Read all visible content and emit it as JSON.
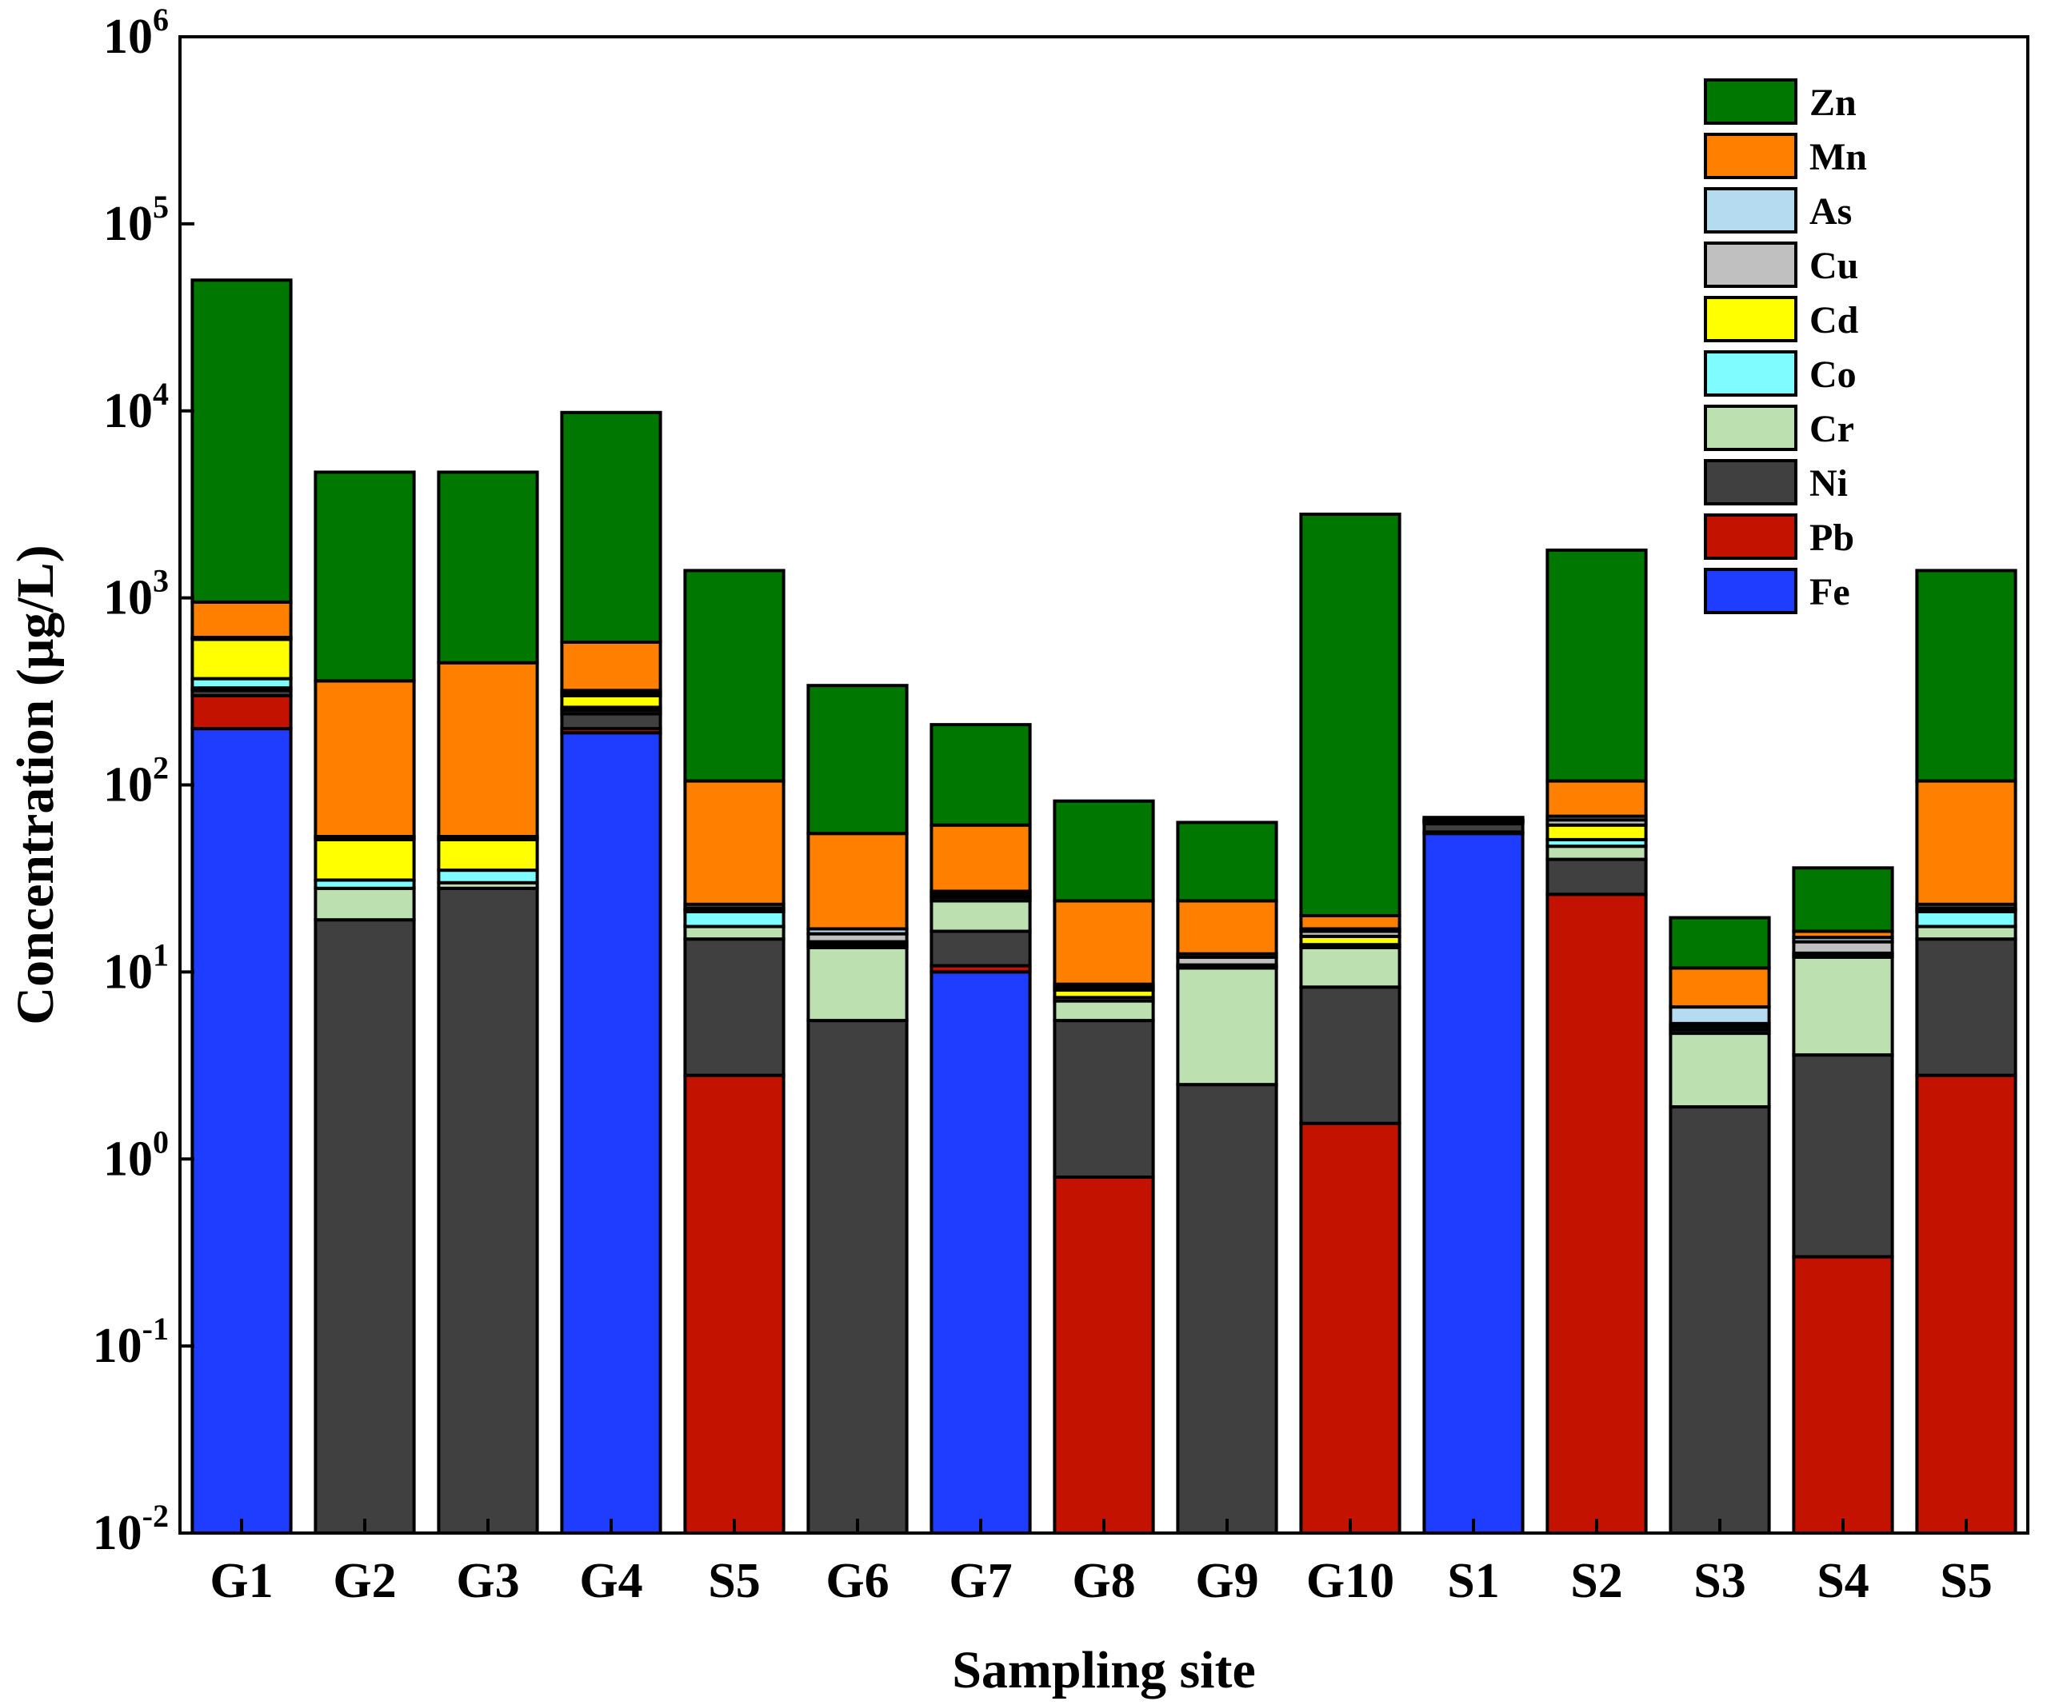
{
  "chart_data": {
    "type": "bar",
    "stacked": true,
    "yscale": "log",
    "title": "",
    "xlabel": "Sampling site",
    "ylabel": "Concentration (μg/L)",
    "ylim": [
      0.01,
      1000000
    ],
    "yticks": [
      {
        "base": "10",
        "exp": "-2"
      },
      {
        "base": "10",
        "exp": "-1"
      },
      {
        "base": "10",
        "exp": "0"
      },
      {
        "base": "10",
        "exp": "1"
      },
      {
        "base": "10",
        "exp": "2"
      },
      {
        "base": "10",
        "exp": "3"
      },
      {
        "base": "10",
        "exp": "4"
      },
      {
        "base": "10",
        "exp": "5"
      },
      {
        "base": "10",
        "exp": "6"
      }
    ],
    "legend_position": "top-right",
    "categories": [
      "G1",
      "G2",
      "G3",
      "G4",
      "S5",
      "G6",
      "G7",
      "G8",
      "G9",
      "G10",
      "S1",
      "S2",
      "S3",
      "S4",
      "S5"
    ],
    "stack_order": [
      "Fe",
      "Pb",
      "Ni",
      "Cr",
      "Co",
      "Cd",
      "Cu",
      "As",
      "Mn",
      "Zn"
    ],
    "legend_order": [
      "Zn",
      "Mn",
      "As",
      "Cu",
      "Cd",
      "Co",
      "Cr",
      "Ni",
      "Pb",
      "Fe"
    ],
    "colors": {
      "Fe": "#1f3dff",
      "Pb": "#c41200",
      "Ni": "#404040",
      "Cr": "#bde0b0",
      "Co": "#7ffcff",
      "Cd": "#ffff00",
      "Cu": "#c0c0c0",
      "As": "#b4dbef",
      "Mn": "#ff8000",
      "Zn": "#007800"
    },
    "cumulative_tops": [
      {
        "Fe": 200,
        "Pb": 300,
        "Ni": 320,
        "Cr": 330,
        "Co": 370,
        "Cd": 600,
        "Cu": 610,
        "As": 615,
        "Mn": 950,
        "Zn": 50000
      },
      {
        "Fe": 0,
        "Pb": 0,
        "Ni": 19,
        "Cr": 28,
        "Co": 31,
        "Cd": 51,
        "Cu": 52,
        "As": 53,
        "Mn": 360,
        "Zn": 4700
      },
      {
        "Fe": 0,
        "Pb": 0,
        "Ni": 28,
        "Cr": 30,
        "Co": 35,
        "Cd": 51,
        "Cu": 52,
        "As": 53,
        "Mn": 450,
        "Zn": 4700
      },
      {
        "Fe": 190,
        "Pb": 200,
        "Ni": 240,
        "Cr": 250,
        "Co": 260,
        "Cd": 300,
        "Cu": 310,
        "As": 320,
        "Mn": 580,
        "Zn": 9800
      },
      {
        "Fe": 0,
        "Pb": 2.8,
        "Ni": 15,
        "Cr": 17.5,
        "Co": 21,
        "Cd": 21.5,
        "Cu": 22,
        "As": 23,
        "Mn": 105,
        "Zn": 1400
      },
      {
        "Fe": 0,
        "Pb": 0,
        "Ni": 5.5,
        "Cr": 13.5,
        "Co": 14,
        "Cd": 14.5,
        "Cu": 16,
        "As": 17,
        "Mn": 55,
        "Zn": 340
      },
      {
        "Fe": 10,
        "Pb": 10.8,
        "Ni": 16.5,
        "Cr": 24,
        "Co": 25,
        "Cd": 25.5,
        "Cu": 26.5,
        "As": 27,
        "Mn": 61,
        "Zn": 210
      },
      {
        "Fe": 0,
        "Pb": 0.8,
        "Ni": 5.5,
        "Cr": 7,
        "Co": 7.3,
        "Cd": 8,
        "Cu": 8.3,
        "As": 8.6,
        "Mn": 24,
        "Zn": 82
      },
      {
        "Fe": 0,
        "Pb": 0,
        "Ni": 2.5,
        "Cr": 10.5,
        "Co": 10.7,
        "Cd": 10.9,
        "Cu": 12,
        "As": 12.5,
        "Mn": 24,
        "Zn": 63
      },
      {
        "Fe": 0,
        "Pb": 1.55,
        "Ni": 8.3,
        "Cr": 13.5,
        "Co": 14,
        "Cd": 15.5,
        "Cu": 16.5,
        "As": 17,
        "Mn": 20,
        "Zn": 2800
      },
      {
        "Fe": 55,
        "Pb": 56,
        "Ni": 62,
        "Cr": 63,
        "Co": 63.5,
        "Cd": 64,
        "Cu": 64.5,
        "As": 65,
        "Mn": 66,
        "Zn": 67
      },
      {
        "Fe": 0,
        "Pb": 26,
        "Ni": 40,
        "Cr": 47,
        "Co": 51,
        "Cd": 61,
        "Cu": 65,
        "As": 68,
        "Mn": 105,
        "Zn": 1800
      },
      {
        "Fe": 0,
        "Pb": 0,
        "Ni": 1.9,
        "Cr": 4.7,
        "Co": 4.9,
        "Cd": 5.1,
        "Cu": 5.3,
        "As": 6.5,
        "Mn": 10.5,
        "Zn": 19.5
      },
      {
        "Fe": 0,
        "Pb": 0.3,
        "Ni": 3.6,
        "Cr": 12,
        "Co": 12.3,
        "Cd": 12.6,
        "Cu": 14.5,
        "As": 15.3,
        "Mn": 16.5,
        "Zn": 36
      },
      {
        "Fe": 0,
        "Pb": 2.8,
        "Ni": 15,
        "Cr": 17.5,
        "Co": 21,
        "Cd": 21.5,
        "Cu": 22,
        "As": 23,
        "Mn": 105,
        "Zn": 1400
      }
    ]
  }
}
